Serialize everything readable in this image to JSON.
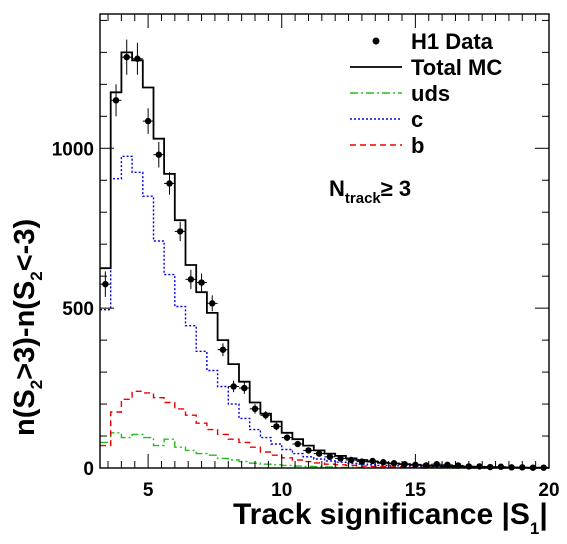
{
  "chart_data": {
    "type": "line",
    "title": "",
    "xlabel_main": "Track significance |S",
    "xlabel_sub": "1",
    "xlabel_end": "|",
    "ylabel": {
      "p1": "n(S",
      "s1": "2",
      "p2": ">3)-n(S",
      "s2": "2",
      "p3": "<-3)"
    },
    "xlim": [
      3.2,
      20
    ],
    "ylim": [
      0,
      1420
    ],
    "x_ticks": [
      5,
      10,
      15,
      20
    ],
    "y_ticks": [
      0,
      500,
      1000
    ],
    "x_minor_step": 0.5,
    "y_minor_step": 100,
    "legend_position": "top-right",
    "annotation": {
      "main": "N",
      "sub": "track",
      "rest": "≥ 3"
    },
    "bin_edges": [
      3.2,
      3.6,
      4.0,
      4.4,
      4.8,
      5.2,
      5.6,
      6.0,
      6.4,
      6.8,
      7.2,
      7.6,
      8.0,
      8.4,
      8.8,
      9.2,
      9.6,
      10.0,
      10.4,
      10.8,
      11.2,
      11.6,
      12.0,
      12.4,
      12.8,
      13.2,
      13.6,
      14.0,
      14.4,
      14.8,
      15.2,
      15.6,
      16.0,
      16.4,
      16.8,
      17.2,
      17.6,
      18.0,
      18.4,
      18.8,
      19.2,
      19.6,
      20.0
    ],
    "series": [
      {
        "name": "H1 Data",
        "kind": "points",
        "color": "#000000",
        "x": [
          3.4,
          3.8,
          4.2,
          4.6,
          5.0,
          5.4,
          5.8,
          6.2,
          6.6,
          7.0,
          7.4,
          7.8,
          8.2,
          8.6,
          9.0,
          9.4,
          9.8,
          10.2,
          10.6,
          11.0,
          11.4,
          11.8,
          12.2,
          12.6,
          13.0,
          13.4,
          13.8,
          14.2,
          14.6,
          15.0,
          15.4,
          15.8,
          16.2,
          16.6,
          17.0,
          17.4,
          17.8,
          18.2,
          18.6,
          19.0,
          19.4,
          19.8
        ],
        "y": [
          575,
          1150,
          1285,
          1280,
          1085,
          980,
          890,
          740,
          590,
          580,
          515,
          370,
          255,
          250,
          185,
          165,
          130,
          95,
          75,
          55,
          45,
          35,
          30,
          25,
          20,
          22,
          18,
          15,
          12,
          10,
          8,
          12,
          10,
          8,
          5,
          5,
          3,
          4,
          2,
          2,
          1,
          1
        ],
        "yerr": [
          40,
          50,
          55,
          50,
          40,
          40,
          35,
          30,
          30,
          28,
          25,
          20,
          18,
          18,
          15,
          13,
          12,
          10,
          9,
          8,
          7,
          6,
          6,
          5,
          5,
          5,
          5,
          4,
          4,
          4,
          3,
          3,
          3,
          3,
          2,
          2,
          2,
          2,
          2,
          2,
          1,
          1
        ]
      },
      {
        "name": "Total MC",
        "kind": "step",
        "color": "#000000",
        "values": [
          625,
          1175,
          1300,
          1275,
          1190,
          1030,
          920,
          775,
          635,
          550,
          485,
          400,
          325,
          270,
          205,
          170,
          145,
          110,
          90,
          70,
          55,
          45,
          38,
          30,
          25,
          20,
          16,
          14,
          12,
          10,
          8,
          7,
          6,
          5,
          4,
          3,
          3,
          2,
          2,
          1,
          1,
          1
        ]
      },
      {
        "name": "uds",
        "kind": "step",
        "color": "#22bb22",
        "dash": "8,3,2,3",
        "values": [
          80,
          110,
          95,
          105,
          95,
          70,
          90,
          65,
          55,
          45,
          40,
          30,
          25,
          20,
          15,
          12,
          10,
          8,
          6,
          5,
          4,
          3,
          2,
          2,
          2,
          1,
          1,
          1,
          1,
          1,
          0,
          0,
          0,
          0,
          0,
          0,
          0,
          0,
          0,
          0,
          0,
          0
        ]
      },
      {
        "name": "c",
        "kind": "step",
        "color": "#0000ee",
        "dash": "2,2",
        "values": [
          495,
          905,
          975,
          925,
          850,
          710,
          605,
          505,
          445,
          365,
          305,
          255,
          200,
          155,
          120,
          95,
          75,
          58,
          45,
          35,
          28,
          22,
          18,
          14,
          12,
          10,
          8,
          7,
          6,
          5,
          4,
          3,
          3,
          2,
          2,
          1,
          1,
          1,
          1,
          0,
          0,
          0
        ]
      },
      {
        "name": "b",
        "kind": "step",
        "color": "#ee0000",
        "dash": "6,4",
        "values": [
          70,
          175,
          215,
          240,
          235,
          220,
          205,
          185,
          165,
          140,
          120,
          105,
          90,
          80,
          65,
          50,
          40,
          32,
          25,
          20,
          16,
          12,
          10,
          8,
          6,
          5,
          4,
          3,
          3,
          2,
          2,
          1,
          1,
          1,
          1,
          0,
          0,
          0,
          0,
          0,
          0,
          0
        ]
      }
    ]
  }
}
